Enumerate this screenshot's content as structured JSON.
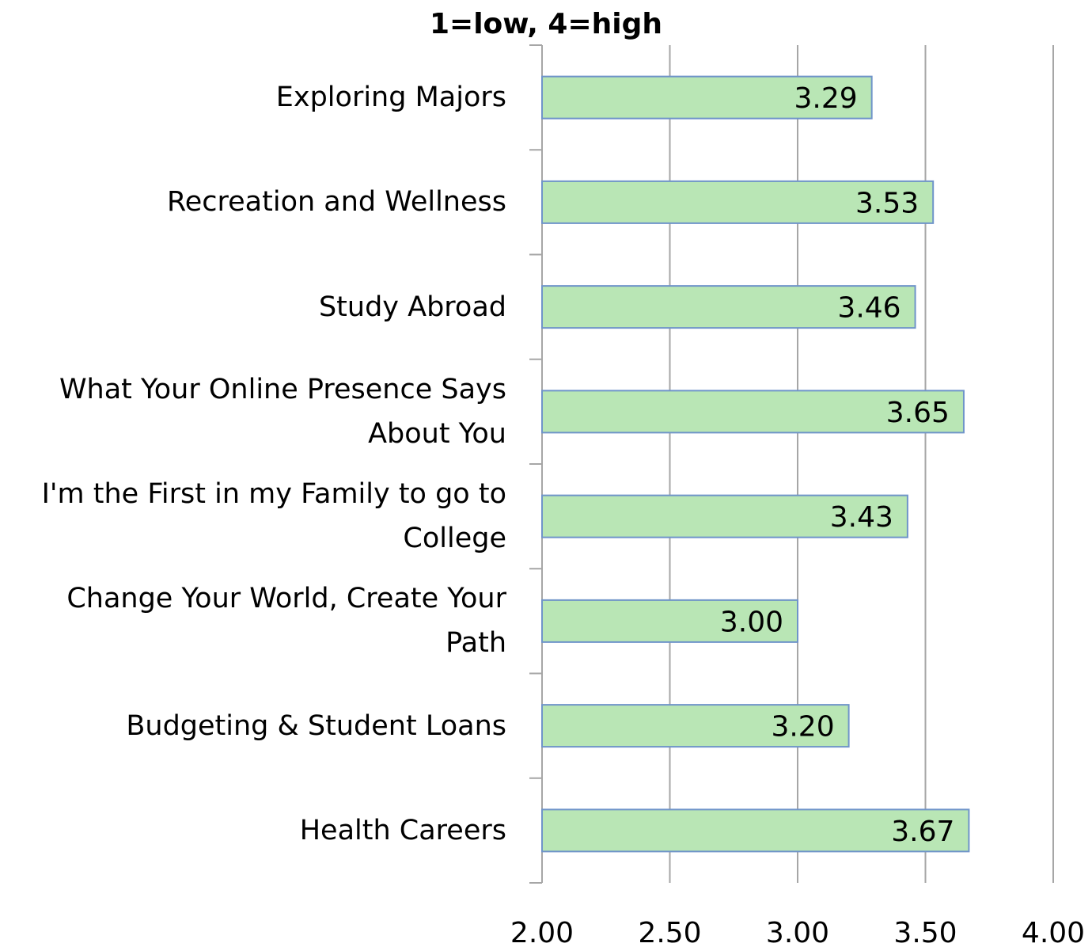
{
  "chart_data": {
    "type": "bar",
    "orientation": "horizontal",
    "title": "1=low, 4=high",
    "categories": [
      "Exploring Majors",
      "Recreation and Wellness",
      "Study Abroad",
      "What Your Online Presence Says About You",
      "I'm the First in my Family to go to College",
      "Change Your World, Create Your Path",
      "Budgeting & Student Loans",
      "Health Careers"
    ],
    "values": [
      3.29,
      3.53,
      3.46,
      3.65,
      3.43,
      3.0,
      3.2,
      3.67
    ],
    "value_labels": [
      "3.29",
      "3.53",
      "3.46",
      "3.65",
      "3.43",
      "3.00",
      "3.20",
      "3.67"
    ],
    "color": "#b9e6b5",
    "xlim": [
      2,
      4
    ],
    "xticks": [
      {
        "value": 2,
        "label": "2.00"
      },
      {
        "value": 2.5,
        "label": "2.50"
      },
      {
        "value": 3,
        "label": "3.00"
      },
      {
        "value": 3.5,
        "label": "3.50"
      },
      {
        "value": 4,
        "label": "4.00"
      }
    ],
    "grid": true
  }
}
